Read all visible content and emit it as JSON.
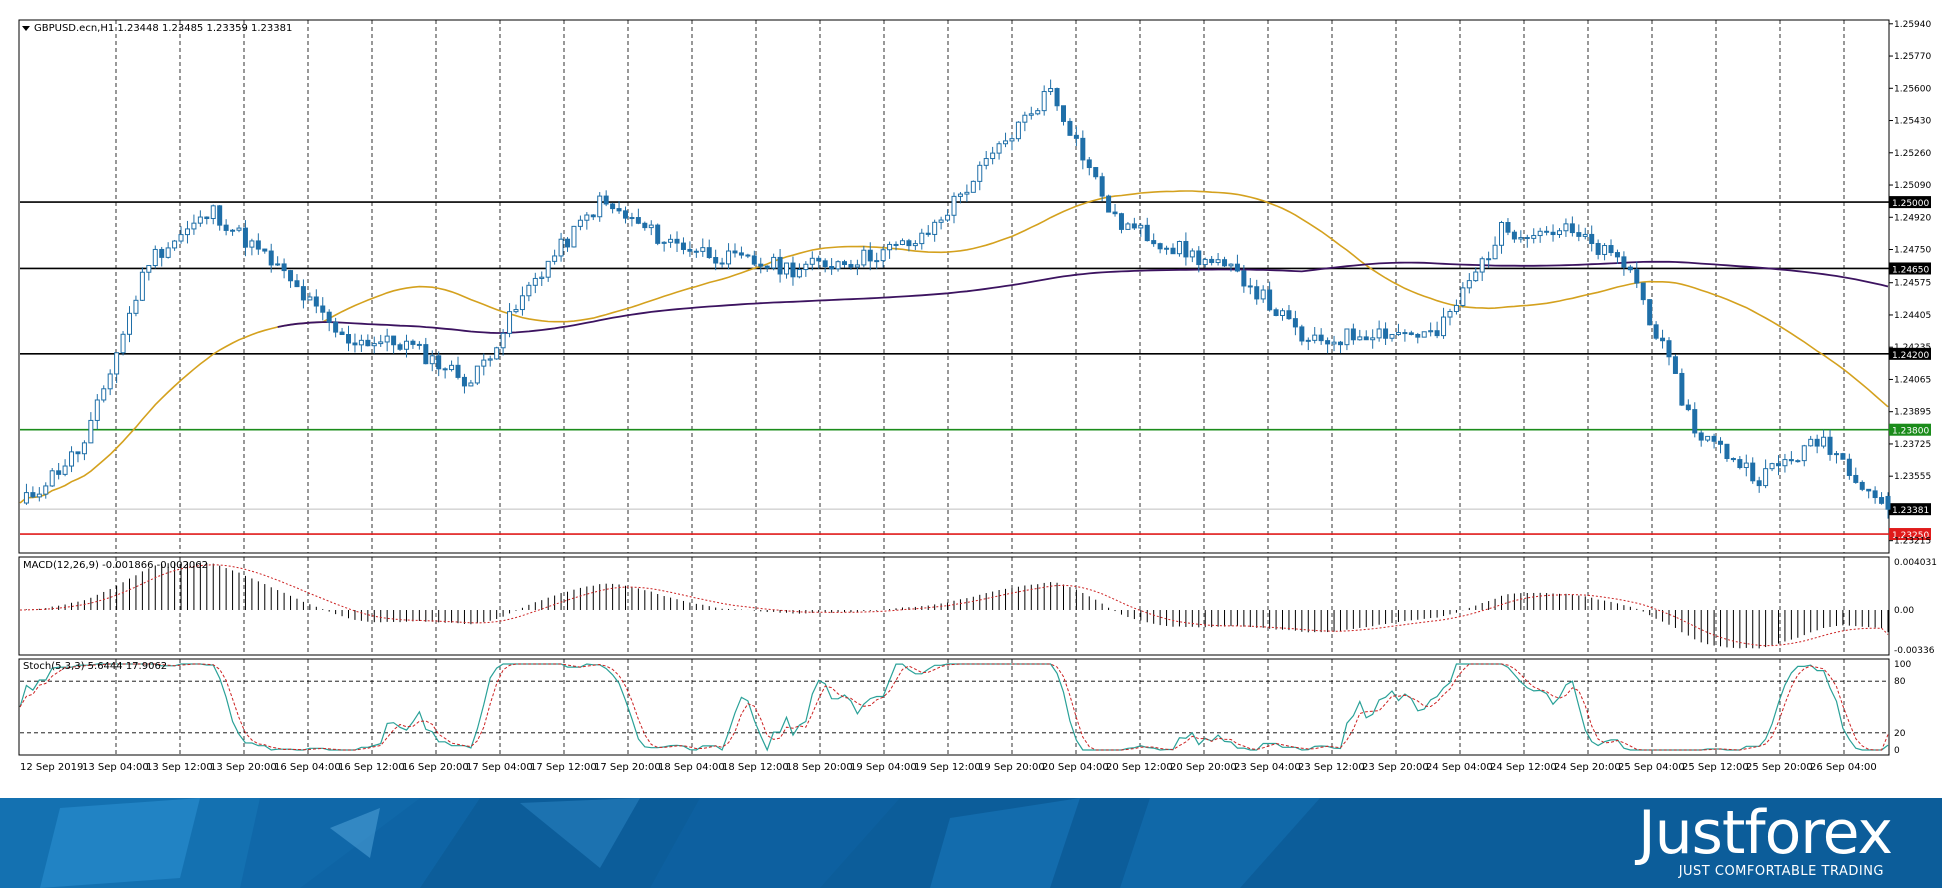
{
  "colors": {
    "candle_up": "#ffffff",
    "candle_down": "#1f6fa8",
    "candle_outline": "#1f6fa8",
    "ma_fast": "#d4a11e",
    "ma_slow": "#3c1360",
    "line_black": "#000000",
    "line_green": "#1b8c1b",
    "line_red": "#e01b1b",
    "last_price_line": "#bfbfbf",
    "macd_signal": "#cc2222",
    "stoch_main": "#2aa198",
    "stoch_signal": "#cc2222",
    "banner": "#0c5d9a"
  },
  "main_panel": {
    "header": "GBPUSD.ecn,H1  1.23448 1.23485 1.23359 1.23381",
    "price_labels": [
      "1.25940",
      "1.25770",
      "1.25600",
      "1.25430",
      "1.25260",
      "1.25090",
      "1.24920",
      "1.24750",
      "1.24575",
      "1.24405",
      "1.24235",
      "1.24065",
      "1.23895",
      "1.23725",
      "1.23555",
      "1.23215"
    ],
    "levels": [
      {
        "price": "1.25000",
        "color": "#000000",
        "name": "level-125000"
      },
      {
        "price": "1.24650",
        "color": "#000000",
        "name": "level-124650"
      },
      {
        "price": "1.24200",
        "color": "#000000",
        "name": "level-124200"
      },
      {
        "price": "1.23800",
        "color": "#1b8c1b",
        "name": "level-123800"
      },
      {
        "price": "1.23250",
        "color": "#e01b1b",
        "name": "level-123250"
      }
    ],
    "last_price": "1.23381"
  },
  "macd_panel": {
    "header": "MACD(12,26,9) -0.001866 -0.002062",
    "labels": [
      "0.004031",
      "0.00",
      "-0.00336"
    ]
  },
  "stoch_panel": {
    "header": "Stoch(5,3,3) 5.6444 17.9062",
    "labels": [
      "100",
      "80",
      "20",
      "0"
    ]
  },
  "time_labels": [
    "12 Sep 2019",
    "13 Sep 04:00",
    "13 Sep 12:00",
    "13 Sep 20:00",
    "16 Sep 04:00",
    "16 Sep 12:00",
    "16 Sep 20:00",
    "17 Sep 04:00",
    "17 Sep 12:00",
    "17 Sep 20:00",
    "18 Sep 04:00",
    "18 Sep 12:00",
    "18 Sep 20:00",
    "19 Sep 04:00",
    "19 Sep 12:00",
    "19 Sep 20:00",
    "20 Sep 04:00",
    "20 Sep 12:00",
    "20 Sep 20:00",
    "23 Sep 04:00",
    "23 Sep 12:00",
    "23 Sep 20:00",
    "24 Sep 04:00",
    "24 Sep 12:00",
    "24 Sep 20:00",
    "25 Sep 04:00",
    "25 Sep 12:00",
    "25 Sep 20:00",
    "26 Sep 04:00"
  ],
  "chart_data": {
    "type": "candlestick",
    "symbol": "GBPUSD.ecn",
    "timeframe": "H1",
    "ylim": [
      1.2315,
      1.2596
    ],
    "close_series": [
      {
        "t": "12 Sep 2019",
        "v": 1.234
      },
      {
        "t": "13 Sep 04:00",
        "v": 1.2372
      },
      {
        "t": "13 Sep 12:00",
        "v": 1.247
      },
      {
        "t": "13 Sep 20:00",
        "v": 1.2495
      },
      {
        "t": "16 Sep 04:00",
        "v": 1.2465
      },
      {
        "t": "16 Sep 12:00",
        "v": 1.2428
      },
      {
        "t": "16 Sep 20:00",
        "v": 1.2425
      },
      {
        "t": "17 Sep 04:00",
        "v": 1.2405
      },
      {
        "t": "17 Sep 12:00",
        "v": 1.246
      },
      {
        "t": "17 Sep 20:00",
        "v": 1.25
      },
      {
        "t": "18 Sep 04:00",
        "v": 1.248
      },
      {
        "t": "18 Sep 12:00",
        "v": 1.247
      },
      {
        "t": "18 Sep 20:00",
        "v": 1.2465
      },
      {
        "t": "19 Sep 04:00",
        "v": 1.247
      },
      {
        "t": "19 Sep 12:00",
        "v": 1.248
      },
      {
        "t": "19 Sep 20:00",
        "v": 1.252
      },
      {
        "t": "20 Sep 04:00",
        "v": 1.256
      },
      {
        "t": "20 Sep 12:00",
        "v": 1.249
      },
      {
        "t": "20 Sep 20:00",
        "v": 1.2475
      },
      {
        "t": "23 Sep 04:00",
        "v": 1.246
      },
      {
        "t": "23 Sep 12:00",
        "v": 1.2425
      },
      {
        "t": "23 Sep 20:00",
        "v": 1.2432
      },
      {
        "t": "24 Sep 04:00",
        "v": 1.243
      },
      {
        "t": "24 Sep 12:00",
        "v": 1.2485
      },
      {
        "t": "24 Sep 20:00",
        "v": 1.2485
      },
      {
        "t": "25 Sep 04:00",
        "v": 1.2465
      },
      {
        "t": "25 Sep 12:00",
        "v": 1.238
      },
      {
        "t": "25 Sep 20:00",
        "v": 1.2355
      },
      {
        "t": "26 Sep 04:00",
        "v": 1.2375
      },
      {
        "t": "26 Sep 07:00",
        "v": 1.23381
      }
    ],
    "reference_levels": [
      1.25,
      1.2465,
      1.242,
      1.238,
      1.2325
    ],
    "last_bar": {
      "open": 1.23448,
      "high": 1.23485,
      "low": 1.23359,
      "close": 1.23381
    },
    "macd": {
      "params": "12,26,9",
      "main": -0.001866,
      "signal": -0.002062,
      "ylim": [
        -0.00336,
        0.004031
      ]
    },
    "stochastic": {
      "params": "5,3,3",
      "main": 5.6444,
      "signal": 17.9062,
      "levels": [
        20,
        80
      ],
      "ylim": [
        0,
        100
      ]
    }
  },
  "brand": {
    "name": "Justforex",
    "tagline": "JUST COMFORTABLE TRADING"
  }
}
